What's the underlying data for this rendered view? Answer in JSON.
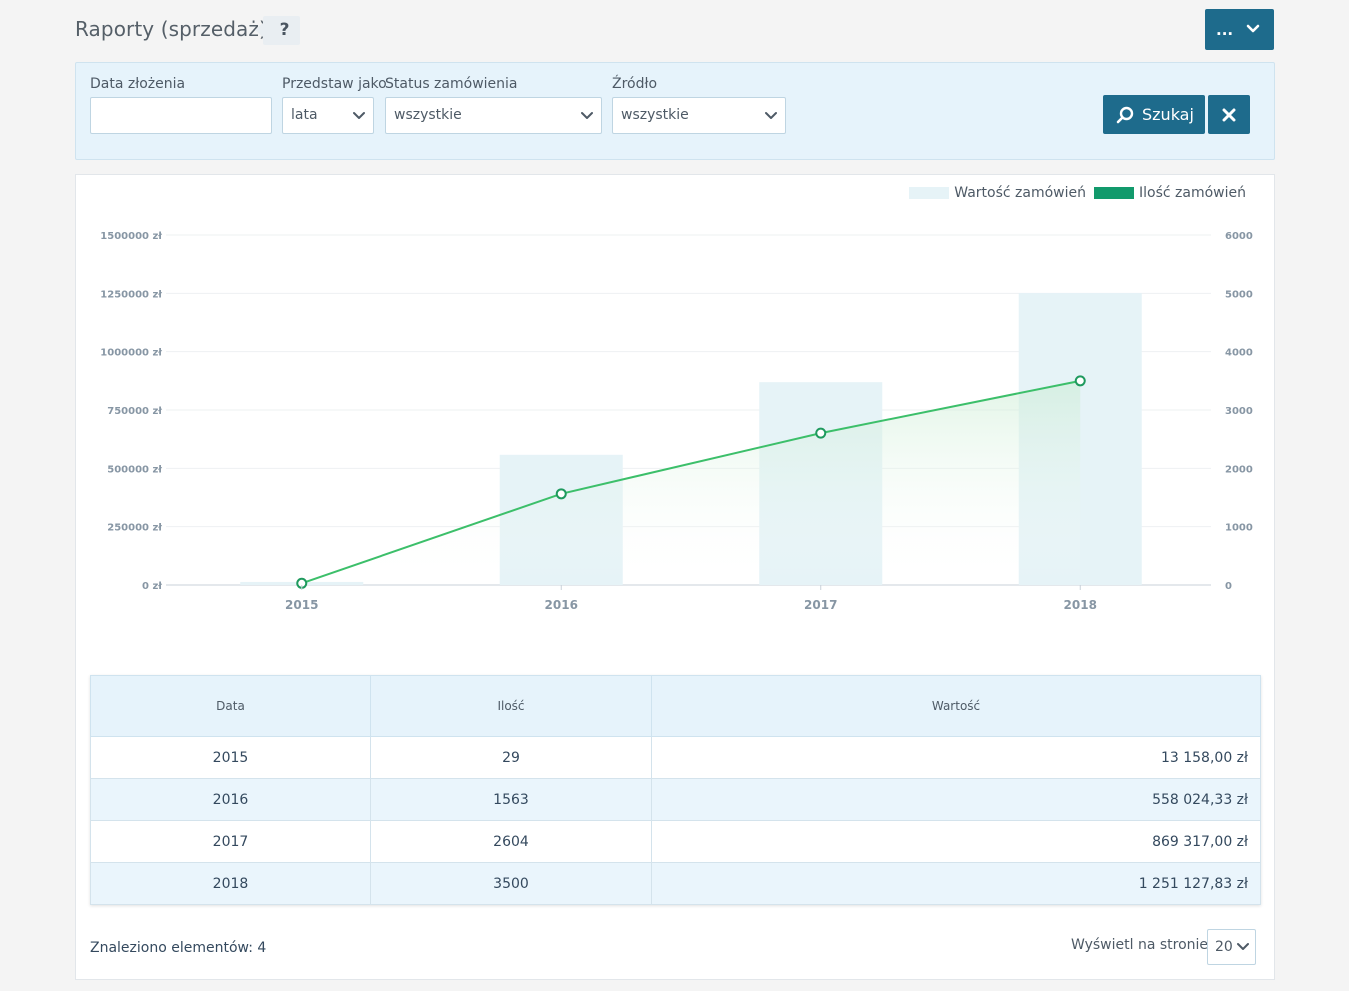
{
  "header": {
    "title": "Raporty (sprzedaż)",
    "help_label": "?",
    "menu_label": "..."
  },
  "filters": {
    "date_label": "Data złożenia",
    "date_value": "",
    "present_label": "Przedstaw jako",
    "present_value": "lata",
    "status_label": "Status zamówienia",
    "status_value": "wszystkie",
    "source_label": "Źródło",
    "source_value": "wszystkie",
    "search_label": "Szukaj"
  },
  "legend": {
    "value_label": "Wartość zamówień",
    "count_label": "Ilość zamówień"
  },
  "colors": {
    "primary": "#1e6b8c",
    "bar": "#e6f3f7",
    "line": "#3cbf6a",
    "legend_value": "#e6f3f7",
    "legend_count": "#129a6c"
  },
  "chart_data": {
    "type": "bar",
    "categories": [
      "2015",
      "2016",
      "2017",
      "2018"
    ],
    "series": [
      {
        "name": "Wartość zamówień",
        "type": "bar",
        "axis": "left",
        "values": [
          13158.0,
          558024.33,
          869317.0,
          1251127.83
        ]
      },
      {
        "name": "Ilość zamówień",
        "type": "line",
        "axis": "right",
        "values": [
          29,
          1563,
          2604,
          3500
        ]
      }
    ],
    "y_left": {
      "ticks": [
        "0 zł",
        "250000 zł",
        "500000 zł",
        "750000 zł",
        "1000000 zł",
        "1250000 zł",
        "1500000 zł"
      ],
      "range": [
        0,
        1500000
      ]
    },
    "y_right": {
      "ticks": [
        "0",
        "1000",
        "2000",
        "3000",
        "4000",
        "5000",
        "6000"
      ],
      "range": [
        0,
        6000
      ]
    },
    "grid": true,
    "legend_position": "top-right"
  },
  "table": {
    "headers": [
      "Data",
      "Ilość",
      "Wartość"
    ],
    "rows": [
      [
        "2015",
        "29",
        "13 158,00 zł"
      ],
      [
        "2016",
        "1563",
        "558 024,33 zł"
      ],
      [
        "2017",
        "2604",
        "869 317,00 zł"
      ],
      [
        "2018",
        "3500",
        "1 251 127,83 zł"
      ]
    ]
  },
  "footer": {
    "found_label": "Znaleziono elementów: 4",
    "per_page_label": "Wyświetl na stronie:",
    "per_page_value": "20"
  }
}
